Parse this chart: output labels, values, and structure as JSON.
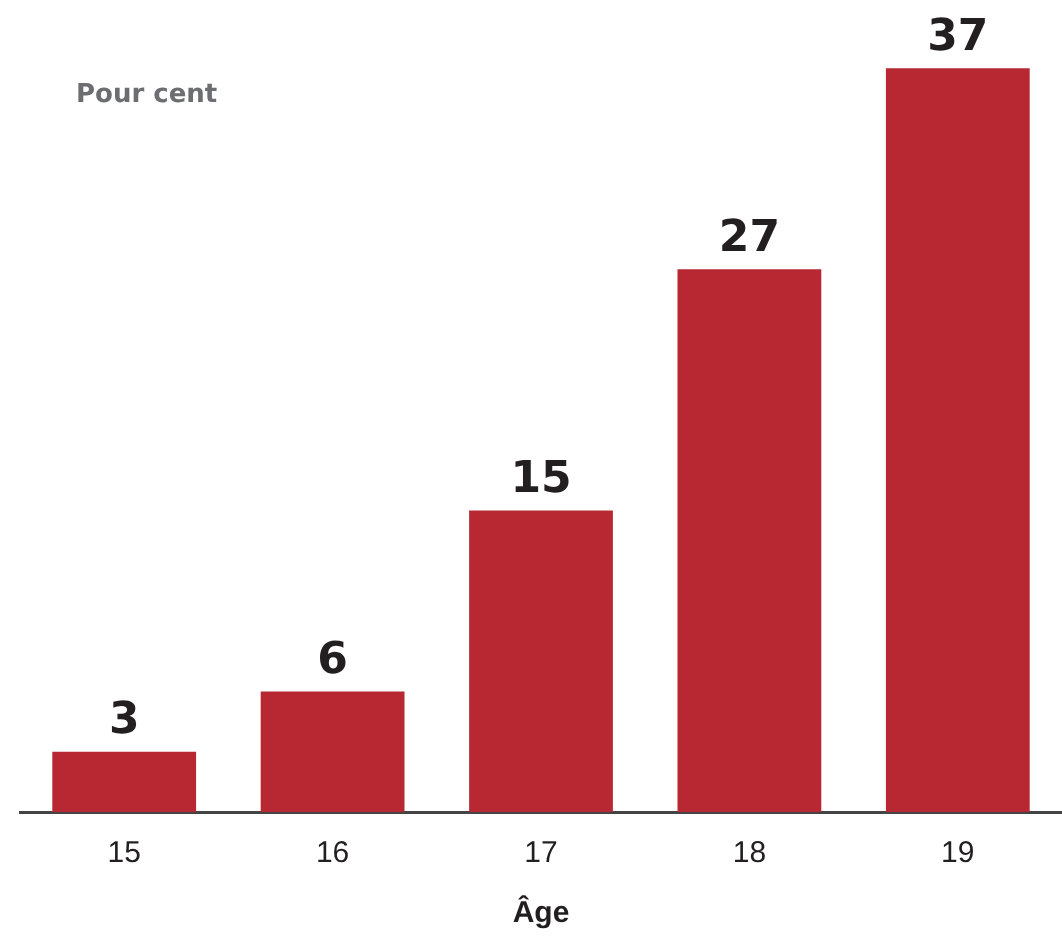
{
  "chart_data": {
    "type": "bar",
    "ylabel": "Pour cent",
    "xlabel": "Âge",
    "categories": [
      "15",
      "16",
      "17",
      "18",
      "19"
    ],
    "values": [
      3,
      6,
      15,
      27,
      37
    ],
    "color": "#b72832",
    "data_labels": true,
    "grid": false,
    "legend": false
  }
}
